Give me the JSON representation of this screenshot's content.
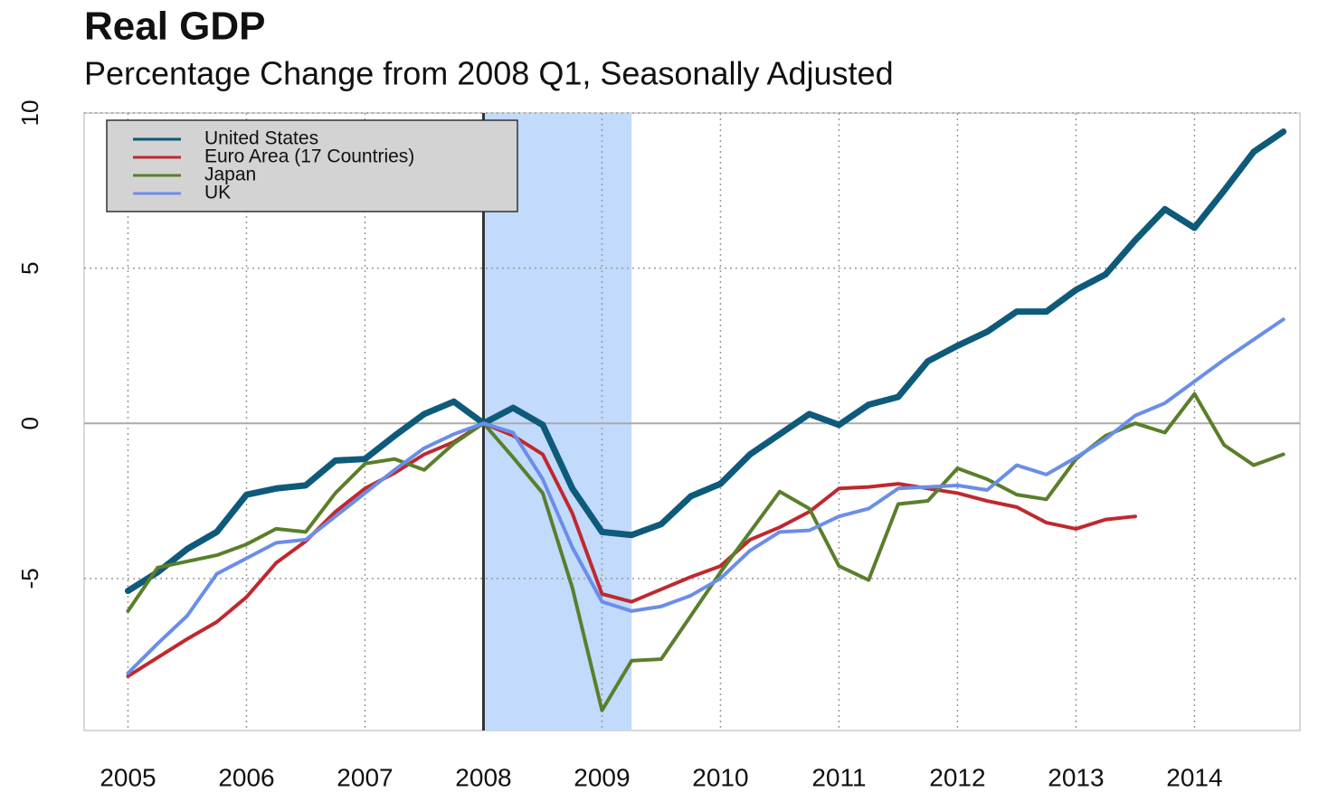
{
  "chart_data": {
    "type": "line",
    "title": "Real GDP",
    "subtitle": "Percentage Change from 2008 Q1, Seasonally Adjusted",
    "x": [
      2005,
      2005.25,
      2005.5,
      2005.75,
      2006,
      2006.25,
      2006.5,
      2006.75,
      2007,
      2007.25,
      2007.5,
      2007.75,
      2008,
      2008.25,
      2008.5,
      2008.75,
      2009,
      2009.25,
      2009.5,
      2009.75,
      2010,
      2010.25,
      2010.5,
      2010.75,
      2011,
      2011.25,
      2011.5,
      2011.75,
      2012,
      2012.25,
      2012.5,
      2012.75,
      2013,
      2013.25,
      2013.5,
      2013.75,
      2014,
      2014.25,
      2014.5,
      2014.75
    ],
    "series": [
      {
        "name": "United States",
        "color": "#0e5a7a",
        "width": 7,
        "values": [
          -5.4,
          -4.8,
          -4.05,
          -3.5,
          -2.3,
          -2.1,
          -2.0,
          -1.2,
          -1.15,
          -0.4,
          0.3,
          0.7,
          0,
          0.5,
          -0.05,
          -2.1,
          -3.5,
          -3.6,
          -3.25,
          -2.35,
          -1.95,
          -1.0,
          -0.35,
          0.3,
          -0.05,
          0.6,
          0.85,
          2.0,
          2.5,
          2.95,
          3.6,
          3.6,
          4.3,
          4.8,
          5.9,
          6.9,
          6.3,
          7.5,
          8.75,
          9.4
        ]
      },
      {
        "name": "Euro Area (17 Countries)",
        "color": "#c0282f",
        "width": 4,
        "values": [
          -8.15,
          -7.55,
          -6.95,
          -6.4,
          -5.6,
          -4.5,
          -3.8,
          -2.85,
          -2.1,
          -1.6,
          -1.0,
          -0.6,
          0,
          -0.4,
          -1.0,
          -2.9,
          -5.5,
          -5.75,
          -5.35,
          -4.95,
          -4.6,
          -3.75,
          -3.35,
          -2.85,
          -2.1,
          -2.05,
          -1.95,
          -2.1,
          -2.25,
          -2.5,
          -2.7,
          -3.2,
          -3.4,
          -3.1,
          -3.0,
          null,
          null,
          null,
          null,
          null
        ]
      },
      {
        "name": "Japan",
        "color": "#5a7f2b",
        "width": 4,
        "values": [
          -6.05,
          -4.65,
          -4.45,
          -4.25,
          -3.9,
          -3.4,
          -3.5,
          -2.25,
          -1.3,
          -1.15,
          -1.5,
          -0.65,
          0,
          -1.1,
          -2.25,
          -5.3,
          -9.25,
          -7.65,
          -7.6,
          -6.2,
          -4.8,
          -3.5,
          -2.2,
          -2.75,
          -4.6,
          -5.05,
          -2.6,
          -2.5,
          -1.45,
          -1.8,
          -2.3,
          -2.45,
          -1.15,
          -0.4,
          0,
          -0.3,
          0.95,
          -0.7,
          -1.35,
          -1.0
        ]
      },
      {
        "name": "UK",
        "color": "#6a8ee8",
        "width": 4,
        "values": [
          -8.05,
          -7.1,
          -6.2,
          -4.85,
          -4.35,
          -3.85,
          -3.75,
          -3.0,
          -2.25,
          -1.5,
          -0.8,
          -0.35,
          0,
          -0.3,
          -1.8,
          -4.0,
          -5.75,
          -6.05,
          -5.9,
          -5.55,
          -5.0,
          -4.1,
          -3.5,
          -3.45,
          -3.0,
          -2.75,
          -2.1,
          -2.05,
          -2.0,
          -2.15,
          -1.35,
          -1.65,
          -1.1,
          -0.5,
          0.25,
          0.65,
          1.35,
          2.05,
          2.7,
          3.35
        ]
      }
    ],
    "xlim": [
      2004.63,
      2014.89
    ],
    "xticks": [
      2005,
      2006,
      2007,
      2008,
      2009,
      2010,
      2011,
      2012,
      2013,
      2014
    ],
    "ylim": [
      -9.9,
      10
    ],
    "yticks": [
      -5,
      0,
      5,
      10
    ],
    "grid": true,
    "legend": "top-left",
    "shade": [
      2008,
      2009.25
    ],
    "vline": 2008
  }
}
